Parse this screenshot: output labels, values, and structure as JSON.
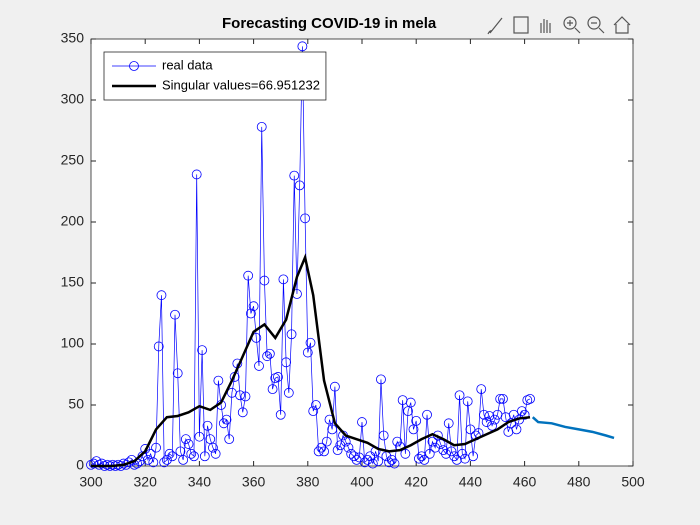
{
  "chart_data": {
    "type": "line",
    "title": "Forecasting COVID-19 in mela",
    "xlim": [
      300,
      500
    ],
    "xticks": [
      300,
      320,
      340,
      360,
      380,
      400,
      420,
      440,
      460,
      480,
      500
    ],
    "ylim": [
      0,
      350
    ],
    "yticks": [
      0,
      50,
      100,
      150,
      200,
      250,
      300,
      350
    ],
    "grid": false,
    "legend": "upper-left",
    "series": [
      {
        "name": "real data",
        "color": "#0000ff",
        "marker": "o",
        "width": 0.7,
        "x": [
          300,
          301,
          302,
          303,
          304,
          305,
          306,
          307,
          308,
          309,
          310,
          311,
          312,
          313,
          314,
          315,
          316,
          317,
          318,
          319,
          320,
          321,
          322,
          323,
          324,
          325,
          326,
          327,
          328,
          329,
          330,
          331,
          332,
          333,
          334,
          335,
          336,
          337,
          338,
          339,
          340,
          341,
          342,
          343,
          344,
          345,
          346,
          347,
          348,
          349,
          350,
          351,
          352,
          353,
          354,
          355,
          356,
          357,
          358,
          359,
          360,
          361,
          362,
          363,
          364,
          365,
          366,
          367,
          368,
          369,
          370,
          371,
          372,
          373,
          374,
          375,
          376,
          377,
          378,
          379,
          380,
          381,
          382,
          383,
          384,
          385,
          386,
          387,
          388,
          389,
          390,
          391,
          392,
          393,
          394,
          395,
          396,
          397,
          398,
          399,
          400,
          401,
          402,
          403,
          404,
          405,
          406,
          407,
          408,
          409,
          410,
          411,
          412,
          413,
          414,
          415,
          416,
          417,
          418,
          419,
          420,
          421,
          422,
          423,
          424,
          425,
          426,
          427,
          428,
          429,
          430,
          431,
          432,
          433,
          434,
          435,
          436,
          437,
          438,
          439,
          440,
          441,
          442,
          443,
          444,
          445,
          446,
          447,
          448,
          449,
          450,
          451,
          452,
          453,
          454,
          455,
          456,
          457,
          458,
          459,
          460,
          461,
          462
        ],
        "values": [
          1,
          2,
          4,
          1,
          2,
          0,
          1,
          0,
          1,
          0,
          1,
          0,
          2,
          1,
          3,
          5,
          1,
          2,
          4,
          8,
          14,
          5,
          10,
          3,
          15,
          98,
          140,
          3,
          5,
          10,
          8,
          124,
          76,
          12,
          5,
          22,
          18,
          10,
          8,
          239,
          24,
          95,
          8,
          33,
          22,
          15,
          10,
          70,
          50,
          35,
          38,
          22,
          60,
          73,
          84,
          58,
          44,
          57,
          156,
          125,
          131,
          105,
          82,
          278,
          152,
          90,
          92,
          63,
          72,
          73,
          42,
          153,
          85,
          60,
          108,
          238,
          141,
          230,
          344,
          203,
          93,
          101,
          45,
          50,
          12,
          15,
          12,
          20,
          38,
          30,
          65,
          13,
          17,
          25,
          20,
          15,
          10,
          8,
          5,
          7,
          36,
          3,
          5,
          8,
          2,
          12,
          4,
          71,
          25,
          8,
          3,
          5,
          2,
          20,
          16,
          54,
          10,
          45,
          52,
          30,
          37,
          6,
          8,
          5,
          42,
          10,
          20,
          15,
          25,
          18,
          13,
          10,
          35,
          12,
          8,
          5,
          58,
          10,
          6,
          53,
          30,
          8,
          25,
          27,
          63,
          42,
          36,
          41,
          33,
          38,
          42,
          55,
          55,
          40,
          28,
          35,
          42,
          30,
          38,
          45,
          42,
          54,
          55
        ]
      },
      {
        "name": "Singular values=66.951232",
        "color": "#000000",
        "width": 2.5,
        "x": [
          300,
          304,
          308,
          312,
          316,
          320,
          324,
          328,
          332,
          336,
          340,
          344,
          348,
          352,
          356,
          360,
          364,
          368,
          372,
          376,
          379,
          382,
          386,
          390,
          394,
          398,
          402,
          406,
          410,
          414,
          418,
          422,
          426,
          430,
          434,
          438,
          442,
          446,
          450,
          454,
          458,
          462
        ],
        "values": [
          0,
          0,
          0,
          1,
          4,
          12,
          30,
          40,
          41,
          44,
          49,
          46,
          52,
          70,
          90,
          110,
          116,
          105,
          120,
          155,
          171,
          140,
          70,
          35,
          25,
          22,
          19,
          14,
          12,
          13,
          17,
          22,
          26,
          22,
          17,
          18,
          22,
          26,
          30,
          36,
          39,
          40
        ]
      },
      {
        "color": "#0072bd",
        "width": 2.5,
        "x": [
          463,
          465,
          470,
          475,
          480,
          485,
          490,
          493
        ],
        "values": [
          40,
          36,
          35,
          32,
          30,
          28,
          25,
          23
        ]
      }
    ]
  }
}
